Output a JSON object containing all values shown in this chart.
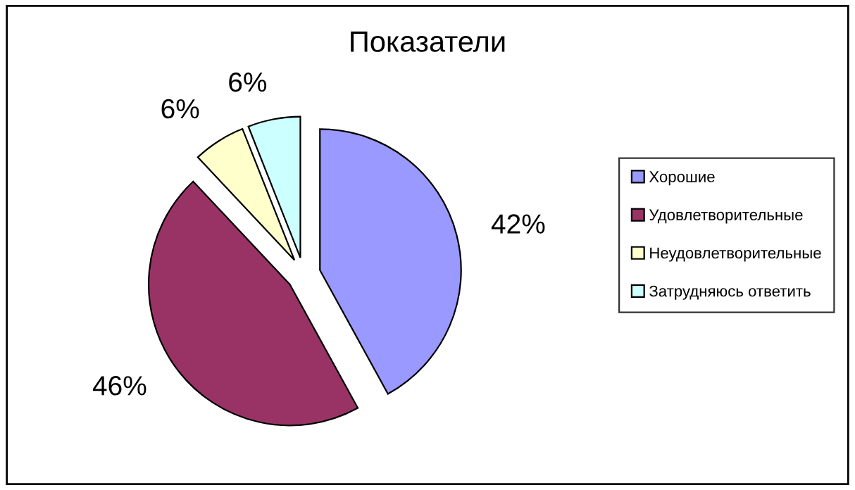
{
  "chart_data": {
    "type": "pie",
    "title": "Показатели",
    "categories": [
      "Хорошие",
      "Удовлетворительные",
      "Неудовлетворительные",
      "Затрудняюсь ответить"
    ],
    "values": [
      42,
      46,
      6,
      6
    ],
    "colors": [
      "#9999ff",
      "#993366",
      "#ffffcc",
      "#ccffff"
    ],
    "value_labels": [
      "42%",
      "46%",
      "6%",
      "6%"
    ],
    "legend": "right"
  }
}
